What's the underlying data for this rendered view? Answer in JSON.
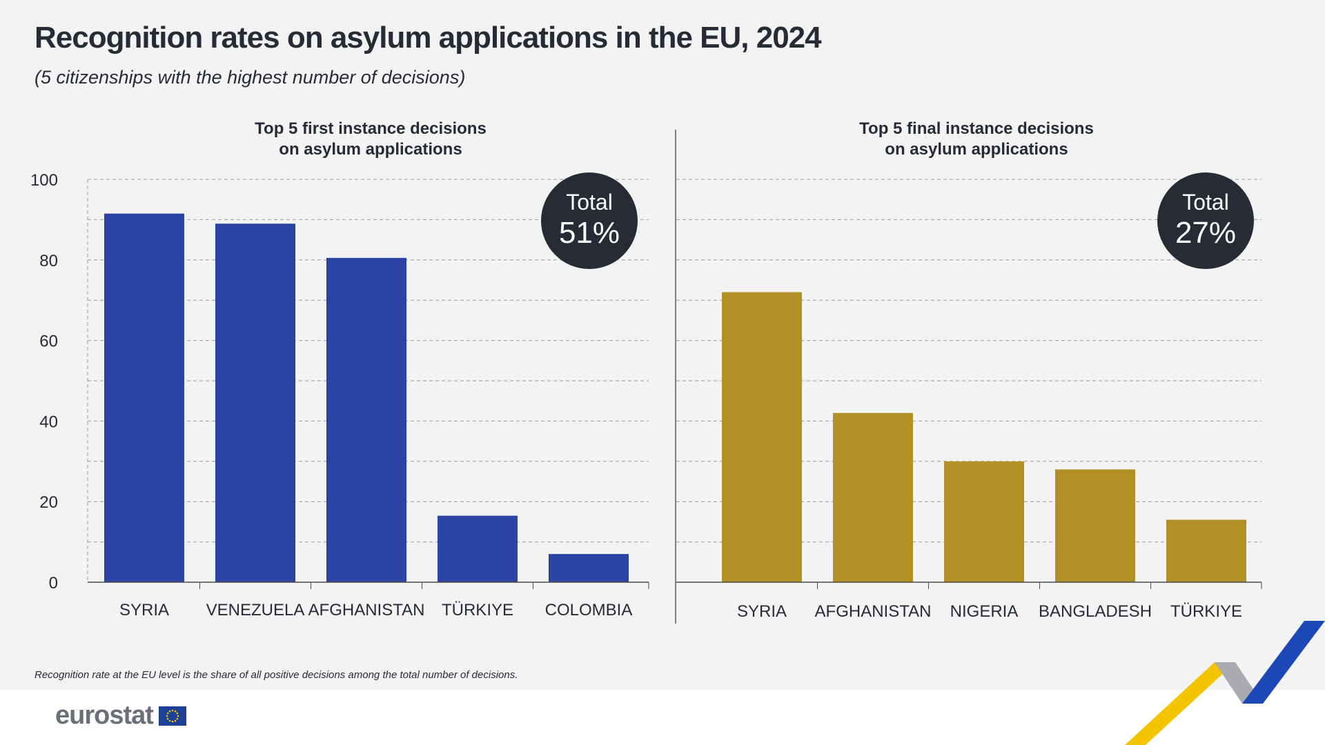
{
  "title": "Recognition rates on asylum applications in the EU, 2024",
  "subtitle": "(5 citizenships with the highest number of decisions)",
  "footnote": "Recognition rate at the EU level is the share of all positive decisions among the total number of decisions.",
  "logo_text": "eurostat",
  "chart_data": [
    {
      "type": "bar",
      "title": "Top 5 first instance decisions on asylum applications",
      "title_lines": [
        "Top 5 first instance decisions",
        "on asylum applications"
      ],
      "categories": [
        "SYRIA",
        "VENEZUELA",
        "AFGHANISTAN",
        "TÜRKIYE",
        "COLOMBIA"
      ],
      "values": [
        91.5,
        89,
        80.5,
        16.5,
        7
      ],
      "ylim": [
        0,
        100
      ],
      "yticks": [
        "0",
        "20",
        "40",
        "60",
        "80",
        "100"
      ],
      "grid": true,
      "color": "#2a44a5",
      "total_label": "Total",
      "total_value": "51%"
    },
    {
      "type": "bar",
      "title": "Top 5 final instance decisions on asylum applications",
      "title_lines": [
        "Top 5 final instance decisions",
        "on asylum applications"
      ],
      "categories": [
        "SYRIA",
        "AFGHANISTAN",
        "NIGERIA",
        "BANGLADESH",
        "TÜRKIYE"
      ],
      "values": [
        72,
        42,
        30,
        28,
        15.5
      ],
      "ylim": [
        0,
        100
      ],
      "grid": true,
      "color": "#b19126",
      "total_label": "Total",
      "total_value": "27%"
    }
  ],
  "colors": {
    "first_instance": "#2a44a5",
    "final_instance": "#b19126",
    "badge": "#262b36",
    "eu_flag": "#1d3f96",
    "eu_stars": "#f3c700"
  }
}
